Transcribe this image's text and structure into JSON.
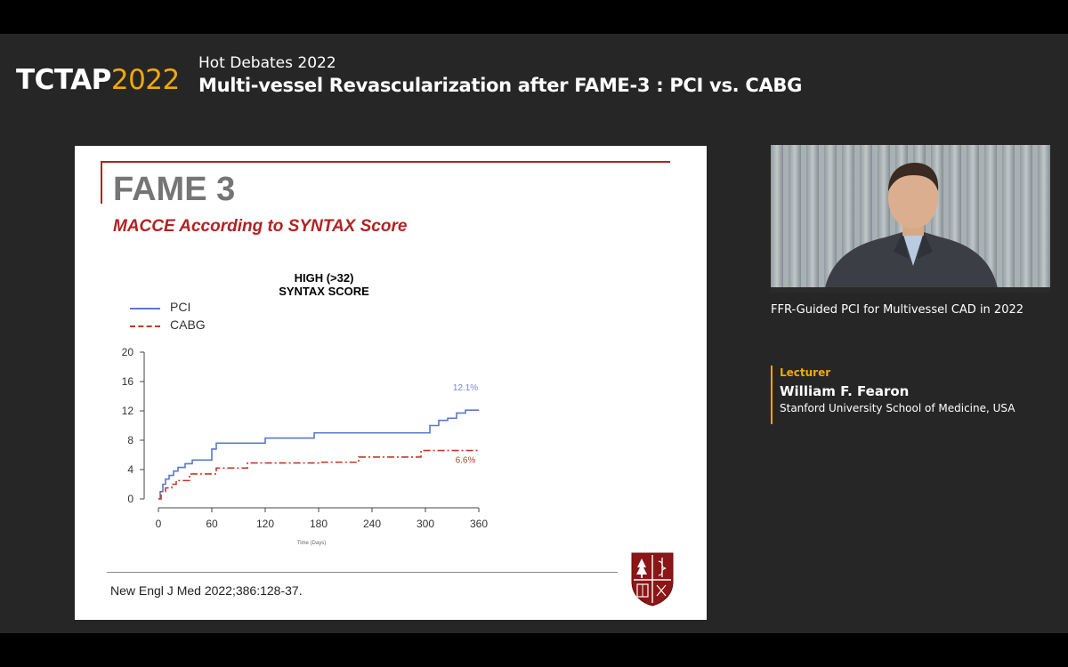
{
  "header": {
    "brand_main": "TCTAP",
    "brand_year": "2022",
    "session_label": "Hot Debates 2022",
    "session_title": "Multi-vessel Revascularization after FAME-3 : PCI vs. CABG"
  },
  "slide": {
    "title": "FAME 3",
    "subtitle": "MACCE According to SYNTAX Score",
    "citation": "New Engl J Med 2022;386:128-37.",
    "legend": [
      {
        "label": "PCI"
      },
      {
        "label": "CABG"
      }
    ]
  },
  "chart_data": {
    "type": "line",
    "title": "HIGH (>32)\nSYNTAX SCORE",
    "xlabel": "Time (Days)",
    "ylabel": "",
    "xlim": [
      0,
      360
    ],
    "ylim": [
      0,
      20
    ],
    "x_ticks": [
      0,
      60,
      120,
      180,
      240,
      300,
      360
    ],
    "y_ticks": [
      0,
      4,
      8,
      12,
      16,
      20
    ],
    "grid": false,
    "legend_position": "top-left",
    "series": [
      {
        "name": "PCI",
        "color": "#5a79c9",
        "style": "solid",
        "end_label": "12.1%",
        "x": [
          0,
          2,
          5,
          8,
          12,
          17,
          22,
          30,
          38,
          55,
          60,
          65,
          90,
          120,
          150,
          175,
          200,
          230,
          260,
          295,
          305,
          315,
          325,
          335,
          345,
          360
        ],
        "y": [
          0,
          1.0,
          2.0,
          2.7,
          3.2,
          3.8,
          4.3,
          4.8,
          5.3,
          5.3,
          6.8,
          7.6,
          7.6,
          8.3,
          8.3,
          9.0,
          9.0,
          9.0,
          9.0,
          9.0,
          10.0,
          10.7,
          11.0,
          11.7,
          12.1,
          12.1
        ]
      },
      {
        "name": "CABG",
        "color": "#c0392b",
        "style": "dashdot",
        "end_label": "6.6%",
        "x": [
          0,
          3,
          8,
          15,
          20,
          30,
          35,
          60,
          65,
          95,
          100,
          115,
          150,
          180,
          215,
          225,
          260,
          290,
          295,
          360
        ],
        "y": [
          0,
          1.0,
          1.5,
          2.0,
          2.5,
          2.5,
          3.4,
          3.4,
          4.2,
          4.2,
          4.9,
          4.9,
          4.9,
          5.0,
          5.0,
          5.7,
          5.7,
          5.7,
          6.6,
          6.6
        ]
      }
    ]
  },
  "sidebar": {
    "video_caption": "FFR-Guided PCI for Multivessel CAD in 2022",
    "lecturer_tag": "Lecturer",
    "lecturer_name": "William F. Fearon",
    "lecturer_affiliation": "Stanford University School of Medicine, USA"
  },
  "colors": {
    "accent_gold": "#f2a900",
    "slide_red": "#b22222",
    "background": "#262626"
  }
}
